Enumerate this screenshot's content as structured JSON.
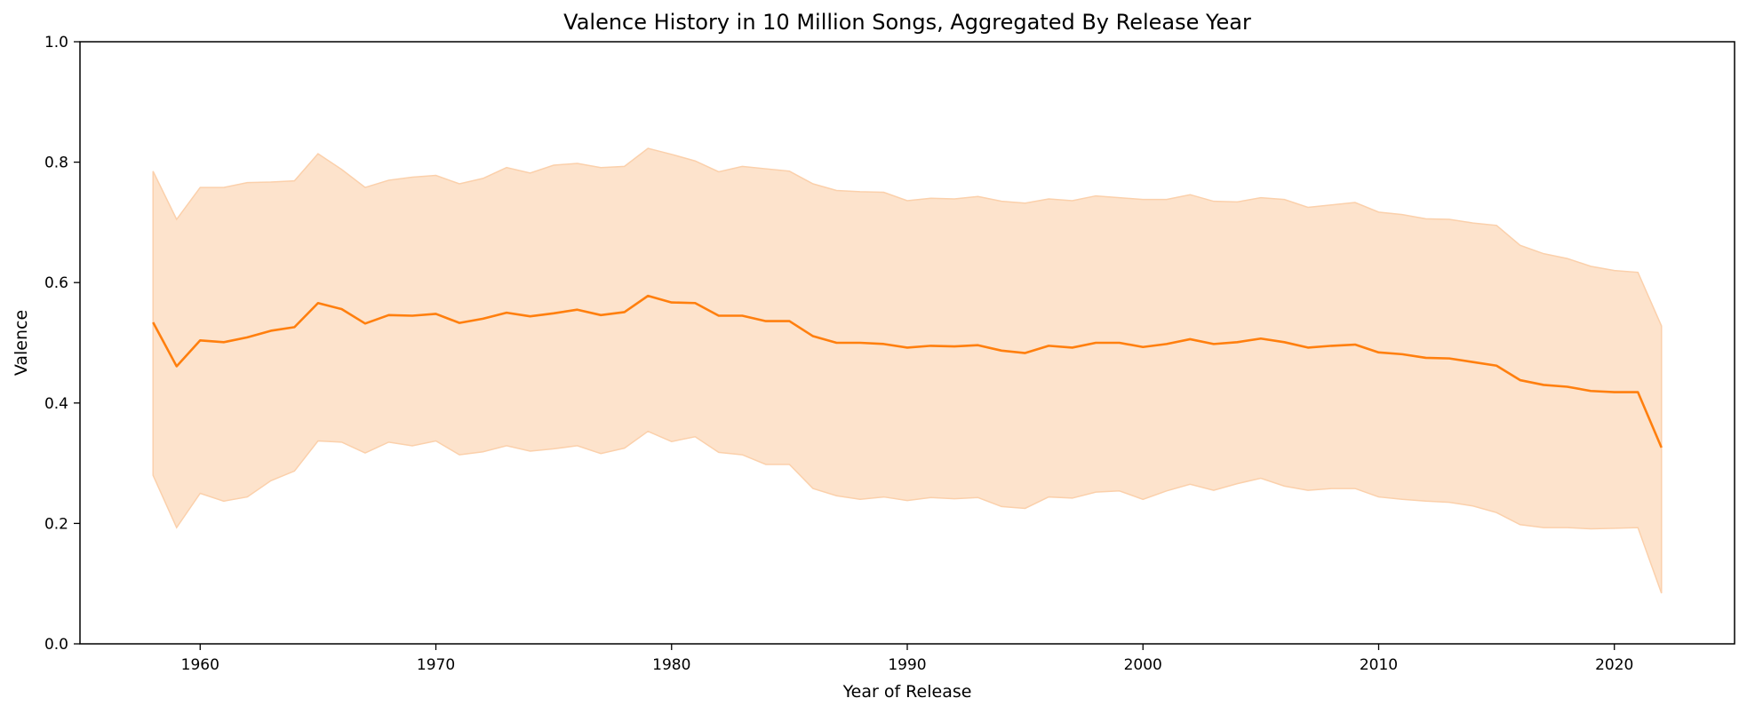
{
  "chart_data": {
    "type": "line",
    "title": "Valence History in 10 Million Songs, Aggregated By Release Year",
    "xlabel": "Year of Release",
    "ylabel": "Valence",
    "xlim": [
      1954.9,
      2025.1
    ],
    "ylim": [
      0.0,
      1.0
    ],
    "xticks": [
      1960,
      1970,
      1980,
      1990,
      2000,
      2010,
      2020
    ],
    "yticks": [
      0.0,
      0.2,
      0.4,
      0.6,
      0.8,
      1.0
    ],
    "ytick_labels": [
      "0.0",
      "0.2",
      "0.4",
      "0.6",
      "0.8",
      "1.0"
    ],
    "grid": false,
    "colors": {
      "line": "#ff7f0e",
      "band": "#fde3cc",
      "band_edge": "#fbd0ab"
    },
    "x": [
      1958,
      1959,
      1960,
      1961,
      1962,
      1963,
      1964,
      1965,
      1966,
      1967,
      1968,
      1969,
      1970,
      1971,
      1972,
      1973,
      1974,
      1975,
      1976,
      1977,
      1978,
      1979,
      1980,
      1981,
      1982,
      1983,
      1984,
      1985,
      1986,
      1987,
      1988,
      1989,
      1990,
      1991,
      1992,
      1993,
      1994,
      1995,
      1996,
      1997,
      1998,
      1999,
      2000,
      2001,
      2002,
      2003,
      2004,
      2005,
      2006,
      2007,
      2008,
      2009,
      2010,
      2011,
      2012,
      2013,
      2014,
      2015,
      2016,
      2017,
      2018,
      2019,
      2020,
      2021,
      2022
    ],
    "mean": [
      0.534,
      0.461,
      0.504,
      0.501,
      0.509,
      0.52,
      0.526,
      0.566,
      0.556,
      0.532,
      0.546,
      0.545,
      0.548,
      0.533,
      0.54,
      0.55,
      0.544,
      0.549,
      0.555,
      0.546,
      0.551,
      0.578,
      0.567,
      0.566,
      0.545,
      0.545,
      0.536,
      0.536,
      0.511,
      0.5,
      0.5,
      0.498,
      0.492,
      0.495,
      0.494,
      0.496,
      0.487,
      0.483,
      0.495,
      0.492,
      0.5,
      0.5,
      0.493,
      0.498,
      0.506,
      0.498,
      0.501,
      0.507,
      0.501,
      0.492,
      0.495,
      0.497,
      0.484,
      0.481,
      0.475,
      0.474,
      0.468,
      0.462,
      0.438,
      0.43,
      0.427,
      0.42,
      0.418,
      0.418,
      0.326
    ],
    "upper": [
      0.785,
      0.705,
      0.758,
      0.758,
      0.766,
      0.767,
      0.769,
      0.814,
      0.788,
      0.758,
      0.77,
      0.775,
      0.778,
      0.764,
      0.773,
      0.791,
      0.782,
      0.795,
      0.798,
      0.791,
      0.793,
      0.823,
      0.813,
      0.802,
      0.784,
      0.793,
      0.789,
      0.785,
      0.764,
      0.753,
      0.751,
      0.75,
      0.736,
      0.74,
      0.739,
      0.743,
      0.735,
      0.732,
      0.739,
      0.736,
      0.744,
      0.741,
      0.738,
      0.738,
      0.746,
      0.735,
      0.734,
      0.741,
      0.738,
      0.725,
      0.729,
      0.733,
      0.717,
      0.713,
      0.706,
      0.705,
      0.699,
      0.695,
      0.662,
      0.648,
      0.64,
      0.627,
      0.62,
      0.617,
      0.528
    ],
    "lower": [
      0.28,
      0.193,
      0.25,
      0.237,
      0.244,
      0.271,
      0.287,
      0.337,
      0.335,
      0.317,
      0.335,
      0.329,
      0.337,
      0.314,
      0.319,
      0.329,
      0.32,
      0.324,
      0.329,
      0.316,
      0.325,
      0.353,
      0.336,
      0.344,
      0.318,
      0.314,
      0.298,
      0.298,
      0.258,
      0.246,
      0.24,
      0.244,
      0.238,
      0.243,
      0.241,
      0.243,
      0.228,
      0.225,
      0.244,
      0.242,
      0.252,
      0.254,
      0.24,
      0.254,
      0.265,
      0.255,
      0.266,
      0.275,
      0.262,
      0.255,
      0.258,
      0.258,
      0.244,
      0.24,
      0.237,
      0.235,
      0.229,
      0.218,
      0.198,
      0.193,
      0.193,
      0.191,
      0.192,
      0.193,
      0.084
    ]
  }
}
